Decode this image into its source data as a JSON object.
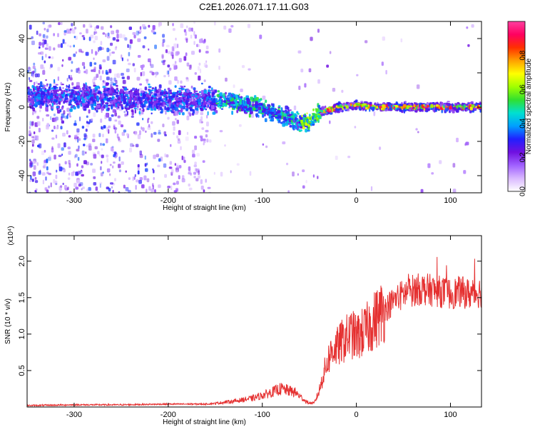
{
  "title": "C2E1.2026.071.17.11.G03",
  "chart_data": [
    {
      "type": "heatmap",
      "name": "spectrogram",
      "xlabel": "Height of straight line (km)",
      "ylabel": "Frequency (Hz)",
      "xlim": [
        -350,
        133
      ],
      "ylim": [
        -50,
        50
      ],
      "xticks": [
        -300,
        -200,
        -100,
        0,
        100
      ],
      "xtick_labels": [
        "-300",
        "-200",
        "-100",
        "0",
        "100"
      ],
      "yticks": [
        -40,
        -20,
        0,
        20,
        40
      ],
      "ytick_labels": [
        "-40",
        "-20",
        "0",
        "20",
        "40"
      ],
      "colorbar": {
        "label": "Normalized spectral amplitude",
        "range": [
          0,
          1
        ],
        "ticks": [
          0.0,
          0.2,
          0.4,
          0.6,
          0.8
        ],
        "tick_labels": [
          "0.0",
          "0.2",
          "0.4",
          "0.6",
          "0.8"
        ],
        "colormap": [
          "#ffffff",
          "#d9b8ff",
          "#a060ff",
          "#7010e0",
          "#2020ff",
          "#00a0ff",
          "#00e0d0",
          "#30e030",
          "#a0ff00",
          "#ffff00",
          "#ffa000",
          "#ff3000",
          "#ff0060",
          "#ff40a0"
        ]
      },
      "signal_ridge": {
        "x_km": [
          -350,
          -300,
          -250,
          -200,
          -160,
          -130,
          -100,
          -80,
          -60,
          -50,
          -40,
          -20,
          0,
          20,
          60,
          100,
          133
        ],
        "freq_hz": [
          7,
          7,
          6,
          5,
          5,
          4,
          0,
          -4,
          -8,
          -7,
          -2,
          1,
          2,
          1,
          1,
          1,
          1
        ]
      }
    },
    {
      "type": "line",
      "name": "snr",
      "xlabel": "Height of straight line (km)",
      "ylabel": "SNR (10 * v/v)",
      "y_scale_label": "(x10⁴)",
      "xlim": [
        -350,
        133
      ],
      "ylim": [
        0,
        2.35
      ],
      "xticks": [
        -300,
        -200,
        -100,
        0,
        100
      ],
      "xtick_labels": [
        "-300",
        "-200",
        "-100",
        "0",
        "100"
      ],
      "yticks": [
        0.5,
        1.0,
        1.5,
        2.0
      ],
      "ytick_labels": [
        "0.5",
        "1.0",
        "1.5",
        "2.0"
      ],
      "line_color": "#e53030",
      "series": [
        {
          "name": "SNR",
          "x": [
            -350,
            -300,
            -250,
            -200,
            -160,
            -150,
            -130,
            -110,
            -95,
            -80,
            -65,
            -52,
            -45,
            -40,
            -35,
            -30,
            -25,
            -20,
            -15,
            -10,
            -5,
            0,
            10,
            20,
            30,
            40,
            50,
            60,
            70,
            80,
            90,
            100,
            110,
            120,
            133
          ],
          "y": [
            0.02,
            0.03,
            0.03,
            0.04,
            0.04,
            0.05,
            0.08,
            0.12,
            0.18,
            0.25,
            0.2,
            0.06,
            0.05,
            0.2,
            0.45,
            0.65,
            0.8,
            0.82,
            0.9,
            0.95,
            1.0,
            0.95,
            1.05,
            1.2,
            1.35,
            1.45,
            1.55,
            1.6,
            1.62,
            1.6,
            1.58,
            1.55,
            1.58,
            1.55,
            1.58
          ]
        }
      ]
    }
  ]
}
